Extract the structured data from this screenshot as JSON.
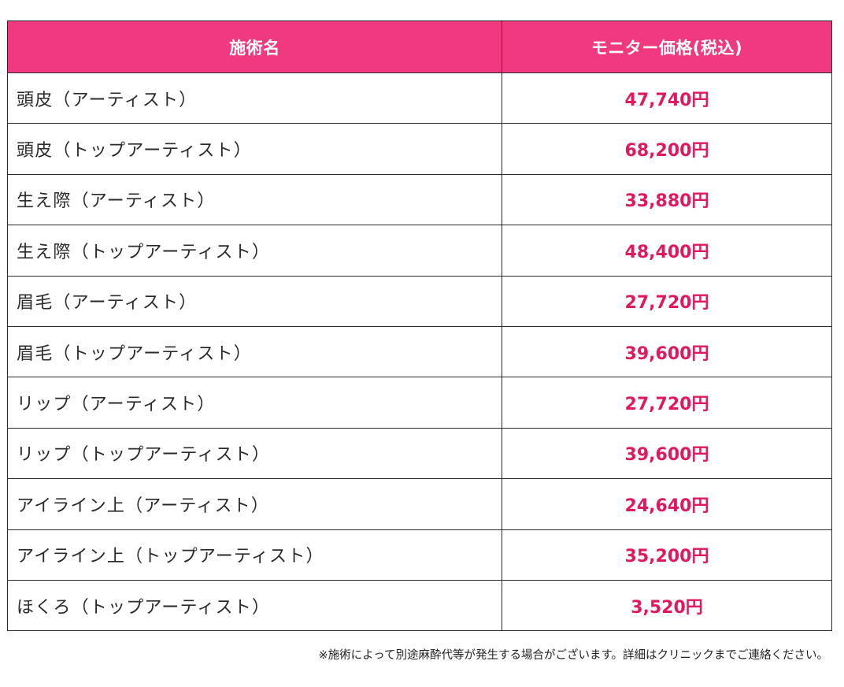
{
  "table": {
    "headers": {
      "treatment": "施術名",
      "price": "モニター価格(税込)"
    },
    "rows": [
      {
        "treatment": "頭皮（アーティスト）",
        "price": "47,740円"
      },
      {
        "treatment": "頭皮（トップアーティスト）",
        "price": "68,200円"
      },
      {
        "treatment": "生え際（アーティスト）",
        "price": "33,880円"
      },
      {
        "treatment": "生え際（トップアーティスト）",
        "price": "48,400円"
      },
      {
        "treatment": "眉毛（アーティスト）",
        "price": "27,720円"
      },
      {
        "treatment": "眉毛（トップアーティスト）",
        "price": "39,600円"
      },
      {
        "treatment": "リップ（アーティスト）",
        "price": "27,720円"
      },
      {
        "treatment": "リップ（トップアーティスト）",
        "price": "39,600円"
      },
      {
        "treatment": "アイライン上（アーティスト）",
        "price": "24,640円"
      },
      {
        "treatment": "アイライン上（トップアーティスト）",
        "price": "35,200円"
      },
      {
        "treatment": "ほくろ（トップアーティスト）",
        "price": "3,520円"
      }
    ]
  },
  "footnote": "※施術によって別途麻酔代等が発生する場合がございます。詳細はクリニックまでご連絡ください。",
  "colors": {
    "header_bg": "#f03a7f",
    "price_text": "#e0185f"
  }
}
